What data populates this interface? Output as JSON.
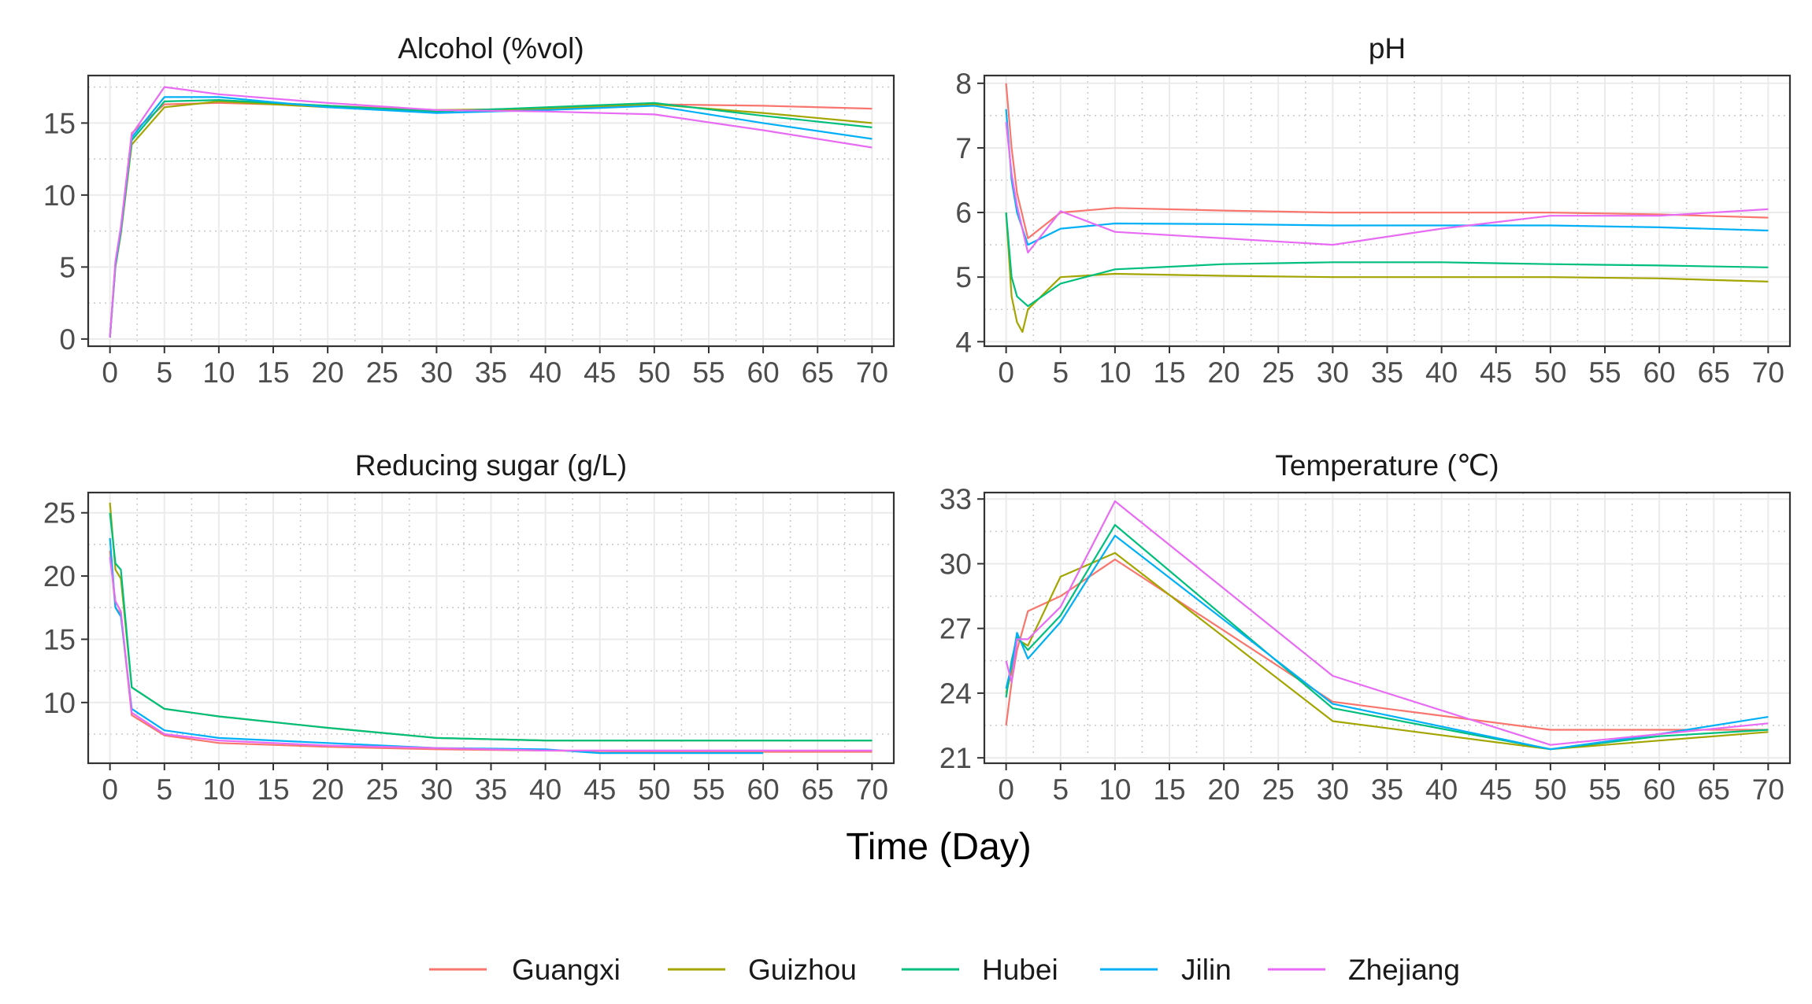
{
  "shared_x_label": "Time (Day)",
  "legend": {
    "entries": [
      {
        "name": "Guangxi",
        "color": "#F8766D"
      },
      {
        "name": "Guizhou",
        "color": "#A3A500"
      },
      {
        "name": "Hubei",
        "color": "#00BF7D"
      },
      {
        "name": "Jilin",
        "color": "#00B0F6"
      },
      {
        "name": "Zhejiang",
        "color": "#E76BF3"
      }
    ]
  },
  "chart_data": [
    {
      "type": "line",
      "title": "Alcohol (%vol)",
      "xlabel": "Time (Day)",
      "ylabel": "",
      "xlim": [
        -2,
        72
      ],
      "ylim": [
        -0.5,
        18.3
      ],
      "xticks": [
        0,
        5,
        10,
        15,
        20,
        25,
        30,
        35,
        40,
        45,
        50,
        55,
        60,
        65,
        70
      ],
      "yticks": [
        0,
        5,
        10,
        15
      ],
      "grid": true,
      "series": [
        {
          "name": "Guangxi",
          "color": "#F8766D",
          "x": [
            0,
            0.5,
            1,
            2,
            5,
            10,
            20,
            30,
            40,
            50,
            60,
            70
          ],
          "y": [
            0.1,
            5.3,
            7.7,
            14.3,
            16.3,
            16.4,
            16.2,
            15.9,
            15.9,
            16.3,
            16.2,
            16.0
          ]
        },
        {
          "name": "Guizhou",
          "color": "#A3A500",
          "x": [
            0,
            0.5,
            1,
            2,
            5,
            10,
            20,
            30,
            40,
            50,
            60,
            70
          ],
          "y": [
            0.1,
            5.0,
            7.3,
            13.5,
            16.1,
            16.5,
            16.1,
            15.9,
            16.0,
            16.3,
            15.7,
            15.0
          ]
        },
        {
          "name": "Hubei",
          "color": "#00BF7D",
          "x": [
            0,
            0.5,
            1,
            2,
            5,
            10,
            20,
            30,
            40,
            50,
            60,
            70
          ],
          "y": [
            0.1,
            5.1,
            7.5,
            13.8,
            16.5,
            16.6,
            16.2,
            15.8,
            16.1,
            16.4,
            15.5,
            14.7
          ]
        },
        {
          "name": "Jilin",
          "color": "#00B0F6",
          "x": [
            0,
            0.5,
            1,
            2,
            5,
            10,
            20,
            30,
            40,
            50,
            60,
            70
          ],
          "y": [
            0.1,
            5.2,
            7.6,
            14.0,
            16.8,
            16.8,
            16.1,
            15.7,
            15.9,
            16.2,
            15.0,
            13.9
          ]
        },
        {
          "name": "Zhejiang",
          "color": "#E76BF3",
          "x": [
            0,
            0.5,
            1,
            2,
            5,
            10,
            20,
            30,
            40,
            50,
            60,
            70
          ],
          "y": [
            0.1,
            5.4,
            7.8,
            14.2,
            17.5,
            17.0,
            16.4,
            15.9,
            15.8,
            15.6,
            14.5,
            13.3
          ]
        }
      ]
    },
    {
      "type": "line",
      "title": "pH",
      "xlabel": "Time (Day)",
      "ylabel": "",
      "xlim": [
        -2,
        72
      ],
      "ylim": [
        3.93,
        8.12
      ],
      "xticks": [
        0,
        5,
        10,
        15,
        20,
        25,
        30,
        35,
        40,
        45,
        50,
        55,
        60,
        65,
        70
      ],
      "yticks": [
        4,
        5,
        6,
        7,
        8
      ],
      "grid": true,
      "series": [
        {
          "name": "Guangxi",
          "color": "#F8766D",
          "x": [
            0,
            0.5,
            1,
            2,
            5,
            10,
            20,
            30,
            40,
            50,
            60,
            70
          ],
          "y": [
            8.0,
            7.0,
            6.3,
            5.6,
            6.0,
            6.07,
            6.03,
            6.0,
            6.0,
            6.0,
            5.97,
            5.92
          ]
        },
        {
          "name": "Guizhou",
          "color": "#A3A500",
          "x": [
            0,
            0.5,
            1,
            1.5,
            2,
            5,
            10,
            20,
            30,
            40,
            50,
            60,
            70
          ],
          "y": [
            6.0,
            4.7,
            4.3,
            4.15,
            4.5,
            5.0,
            5.05,
            5.02,
            5.0,
            5.0,
            5.0,
            4.98,
            4.93
          ]
        },
        {
          "name": "Hubei",
          "color": "#00BF7D",
          "x": [
            0,
            0.5,
            1,
            2,
            5,
            10,
            20,
            30,
            40,
            50,
            60,
            70
          ],
          "y": [
            6.0,
            5.0,
            4.7,
            4.55,
            4.9,
            5.12,
            5.2,
            5.23,
            5.23,
            5.2,
            5.18,
            5.15
          ]
        },
        {
          "name": "Jilin",
          "color": "#00B0F6",
          "x": [
            0,
            0.5,
            1,
            2,
            5,
            10,
            20,
            30,
            40,
            50,
            60,
            70
          ],
          "y": [
            7.6,
            6.5,
            6.0,
            5.5,
            5.75,
            5.83,
            5.82,
            5.8,
            5.8,
            5.8,
            5.77,
            5.72
          ]
        },
        {
          "name": "Zhejiang",
          "color": "#E76BF3",
          "x": [
            0,
            0.5,
            1,
            2,
            5,
            10,
            20,
            30,
            40,
            50,
            60,
            70
          ],
          "y": [
            7.4,
            6.6,
            6.1,
            5.38,
            6.02,
            5.7,
            5.6,
            5.5,
            5.75,
            5.95,
            5.95,
            6.05
          ]
        }
      ]
    },
    {
      "type": "line",
      "title": "Reducing sugar (g/L)",
      "xlabel": "Time (Day)",
      "ylabel": "",
      "xlim": [
        -2,
        72
      ],
      "ylim": [
        5.2,
        26.6
      ],
      "xticks": [
        0,
        5,
        10,
        15,
        20,
        25,
        30,
        35,
        40,
        45,
        50,
        55,
        60,
        65,
        70
      ],
      "yticks": [
        10,
        15,
        20,
        25
      ],
      "grid": true,
      "series": [
        {
          "name": "Guangxi",
          "color": "#F8766D",
          "x": [
            0,
            0.5,
            1,
            2,
            5,
            10,
            20,
            30,
            40,
            50,
            60,
            70
          ],
          "y": [
            22.0,
            17.5,
            17.0,
            9.0,
            7.4,
            6.8,
            6.5,
            6.3,
            6.2,
            6.1,
            6.1,
            6.1
          ]
        },
        {
          "name": "Guizhou",
          "color": "#A3A500",
          "x": [
            0,
            0.5,
            1,
            2,
            5,
            10,
            20,
            30,
            40,
            50,
            60,
            70
          ],
          "y": [
            25.8,
            20.5,
            19.8,
            11.2,
            9.5,
            8.9,
            8.0,
            7.2,
            7.0,
            7.0,
            7.0,
            7.0
          ]
        },
        {
          "name": "Hubei",
          "color": "#00BF7D",
          "x": [
            0,
            0.5,
            1,
            2,
            5,
            10,
            20,
            30,
            40,
            50,
            60,
            70
          ],
          "y": [
            25.0,
            21.0,
            20.5,
            11.2,
            9.5,
            8.9,
            8.0,
            7.2,
            7.0,
            7.0,
            7.0,
            7.0
          ]
        },
        {
          "name": "Jilin",
          "color": "#00B0F6",
          "x": [
            0,
            0.5,
            1,
            2,
            5,
            10,
            20,
            30,
            40,
            45,
            50,
            60
          ],
          "y": [
            23.0,
            17.5,
            16.8,
            9.5,
            7.8,
            7.2,
            6.8,
            6.4,
            6.3,
            6.0,
            6.0,
            6.0
          ]
        },
        {
          "name": "Zhejiang",
          "color": "#E76BF3",
          "x": [
            0,
            0.5,
            1,
            2,
            5,
            10,
            20,
            30,
            40,
            50,
            60,
            70
          ],
          "y": [
            21.5,
            18.0,
            17.2,
            9.2,
            7.5,
            7.0,
            6.6,
            6.4,
            6.2,
            6.2,
            6.2,
            6.2
          ]
        }
      ]
    },
    {
      "type": "line",
      "title": "Temperature (℃)",
      "xlabel": "Time (Day)",
      "ylabel": "",
      "xlim": [
        -2,
        72
      ],
      "ylim": [
        20.75,
        33.3
      ],
      "xticks": [
        0,
        5,
        10,
        15,
        20,
        25,
        30,
        35,
        40,
        45,
        50,
        55,
        60,
        65,
        70
      ],
      "yticks": [
        21,
        24,
        27,
        30,
        33
      ],
      "grid": true,
      "series": [
        {
          "name": "Guangxi",
          "color": "#F8766D",
          "x": [
            0,
            0.5,
            1,
            2,
            5,
            10,
            30,
            50,
            60,
            70
          ],
          "y": [
            22.5,
            24.5,
            26.0,
            27.8,
            28.5,
            30.2,
            23.6,
            22.3,
            22.3,
            22.3
          ]
        },
        {
          "name": "Guizhou",
          "color": "#A3A500",
          "x": [
            0,
            0.5,
            1,
            2,
            5,
            10,
            30,
            50,
            60,
            70
          ],
          "y": [
            24.0,
            25.0,
            26.5,
            26.2,
            29.4,
            30.5,
            22.7,
            21.4,
            21.8,
            22.2
          ]
        },
        {
          "name": "Hubei",
          "color": "#00BF7D",
          "x": [
            0,
            0.5,
            1,
            2,
            5,
            10,
            30,
            50,
            60,
            70
          ],
          "y": [
            23.8,
            25.5,
            26.6,
            26.0,
            27.6,
            31.8,
            23.3,
            21.4,
            22.0,
            22.3
          ]
        },
        {
          "name": "Jilin",
          "color": "#00B0F6",
          "x": [
            0,
            0.5,
            1,
            2,
            5,
            10,
            30,
            50,
            60,
            70
          ],
          "y": [
            24.2,
            25.3,
            26.8,
            25.6,
            27.3,
            31.3,
            23.5,
            21.4,
            22.1,
            22.9
          ]
        },
        {
          "name": "Zhejiang",
          "color": "#E76BF3",
          "x": [
            0,
            0.5,
            1,
            2,
            5,
            10,
            30,
            50,
            60,
            70
          ],
          "y": [
            25.5,
            24.5,
            26.5,
            26.5,
            28.0,
            32.9,
            24.8,
            21.6,
            22.1,
            22.6
          ]
        }
      ]
    }
  ]
}
